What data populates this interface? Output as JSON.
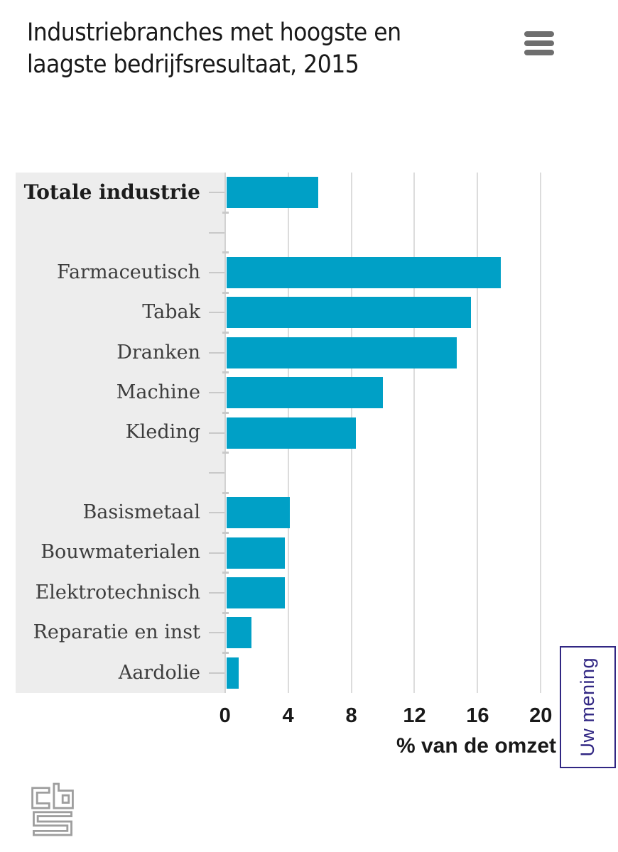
{
  "header": {
    "title_lines": [
      "Industriebranches met hoogste en",
      "laagste bedrijfsresultaat, 2015"
    ],
    "menu_icon": "hamburger-icon"
  },
  "chart_data": {
    "type": "bar",
    "orientation": "horizontal",
    "title": "Industriebranches met hoogste en laagste bedrijfsresultaat, 2015",
    "xlabel": "% van de omzet",
    "xlim": [
      0,
      20
    ],
    "xticks": [
      0,
      4,
      8,
      12,
      16,
      20
    ],
    "grid": true,
    "legend": "none",
    "bar_color": "#00a0c6",
    "rows": [
      {
        "label": "Totale industrie",
        "value": 5.8,
        "emphasis": true
      },
      {
        "label": "",
        "value": null
      },
      {
        "label": "Farmaceutisch",
        "value": 17.4
      },
      {
        "label": "Tabak",
        "value": 15.5
      },
      {
        "label": "Dranken",
        "value": 14.6
      },
      {
        "label": "Machine",
        "value": 9.9
      },
      {
        "label": "Kleding",
        "value": 8.2
      },
      {
        "label": "",
        "value": null
      },
      {
        "label": "Basismetaal",
        "value": 4.0
      },
      {
        "label": "Bouwmaterialen",
        "value": 3.7
      },
      {
        "label": "Elektrotechnisch",
        "value": 3.7
      },
      {
        "label": "Reparatie en inst",
        "value": 1.6
      },
      {
        "label": "Aardolie",
        "value": 0.8
      }
    ]
  },
  "feedback_button": {
    "label": "Uw mening",
    "color": "#312783"
  },
  "footer": {
    "logo": "cbs-logo"
  },
  "colors": {
    "bar": "#00a0c6",
    "panel": "#ededed",
    "grid": "#dcdcdc",
    "axis_line": "#d2d2d2",
    "tick": "#c9c9c9",
    "label_text": "#3d3d3d",
    "title_text": "#191919",
    "accent": "#312783",
    "icon_gray": "#6e6e6e",
    "logo_gray": "#9e9e9e"
  }
}
